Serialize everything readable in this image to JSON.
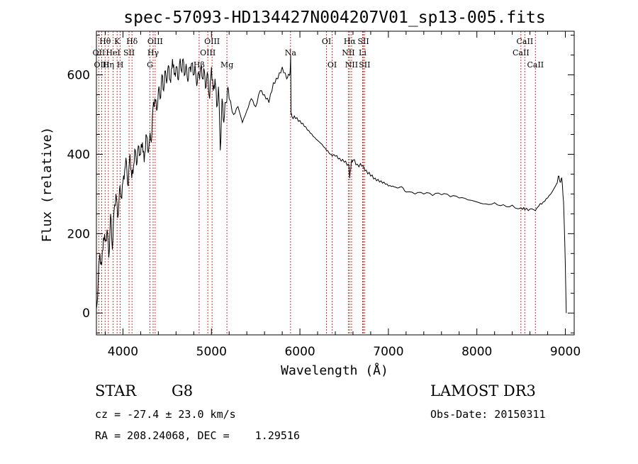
{
  "chart_data": {
    "type": "line",
    "title": "spec-57093-HD134427N004207V01_sp13-005.fits",
    "xlabel": "Wavelength (Å)",
    "ylabel": "Flux (relative)",
    "xlim": [
      3700,
      9100
    ],
    "ylim": [
      -55,
      710
    ],
    "xticks": [
      4000,
      5000,
      6000,
      7000,
      8000,
      9000
    ],
    "yticks": [
      0,
      200,
      400,
      600
    ],
    "grid": false,
    "series": [
      {
        "values_x": [
          3700,
          3720,
          3740,
          3760,
          3780,
          3800,
          3820,
          3840,
          3860,
          3880,
          3900,
          3920,
          3940,
          3960,
          3980,
          4000,
          4020,
          4040,
          4060,
          4080,
          4100,
          4120,
          4140,
          4160,
          4180,
          4200,
          4220,
          4240,
          4260,
          4280,
          4300,
          4320,
          4340,
          4360,
          4380,
          4400,
          4420,
          4440,
          4460,
          4480,
          4500,
          4520,
          4540,
          4560,
          4580,
          4600,
          4620,
          4640,
          4660,
          4680,
          4700,
          4720,
          4740,
          4760,
          4780,
          4800,
          4820,
          4840,
          4860,
          4880,
          4900,
          4920,
          4940,
          4960,
          4980,
          5000,
          5020,
          5040,
          5060,
          5080,
          5100,
          5120,
          5140,
          5160,
          5180,
          5200,
          5250,
          5300,
          5350,
          5400,
          5450,
          5500,
          5550,
          5600,
          5650,
          5700,
          5750,
          5800,
          5850,
          5880,
          5890,
          5895,
          5900,
          5910,
          5950,
          6000,
          6050,
          6100,
          6150,
          6200,
          6250,
          6300,
          6350,
          6400,
          6450,
          6500,
          6550,
          6563,
          6580,
          6600,
          6650,
          6700,
          6750,
          6800,
          6850,
          6900,
          6950,
          7000,
          7050,
          7100,
          7150,
          7200,
          7300,
          7400,
          7500,
          7600,
          7700,
          7800,
          7900,
          8000,
          8100,
          8200,
          8300,
          8400,
          8500,
          8542,
          8600,
          8662,
          8700,
          8750,
          8800,
          8850,
          8900,
          8920,
          8940,
          8960,
          8980,
          9000,
          9010
        ],
        "values_y": [
          10,
          80,
          150,
          120,
          190,
          180,
          210,
          140,
          250,
          160,
          260,
          300,
          240,
          310,
          290,
          330,
          360,
          380,
          320,
          400,
          340,
          370,
          410,
          380,
          420,
          400,
          430,
          380,
          450,
          410,
          440,
          430,
          520,
          540,
          510,
          560,
          540,
          600,
          560,
          610,
          590,
          620,
          580,
          640,
          600,
          620,
          590,
          630,
          610,
          640,
          600,
          615,
          590,
          620,
          630,
          600,
          610,
          580,
          600,
          620,
          590,
          610,
          570,
          600,
          540,
          620,
          560,
          590,
          520,
          570,
          410,
          540,
          480,
          530,
          560,
          540,
          500,
          520,
          480,
          510,
          540,
          520,
          560,
          550,
          530,
          580,
          590,
          620,
          590,
          600,
          610,
          650,
          500,
          495,
          490,
          485,
          470,
          460,
          445,
          435,
          425,
          410,
          400,
          395,
          390,
          380,
          375,
          340,
          380,
          385,
          375,
          370,
          360,
          345,
          340,
          330,
          330,
          320,
          320,
          315,
          318,
          305,
          300,
          300,
          296,
          298,
          293,
          290,
          285,
          280,
          275,
          278,
          273,
          272,
          265,
          260,
          262,
          258,
          270,
          280,
          290,
          305,
          325,
          345,
          330,
          340,
          280,
          120,
          0
        ],
        "stroke": "#000000"
      }
    ],
    "lines": [
      {
        "label": "Hθ",
        "x": 3798,
        "row": 0
      },
      {
        "label": "K",
        "x": 3934,
        "row": 0
      },
      {
        "label": "Hδ",
        "x": 4102,
        "row": 0
      },
      {
        "label": "OII",
        "x": 3727,
        "row": 1
      },
      {
        "label": "HeI",
        "x": 3889,
        "row": 1
      },
      {
        "label": "SII",
        "x": 4069,
        "row": 1
      },
      {
        "label": "OIII",
        "x": 3760,
        "row": 2
      },
      {
        "label": "Hη",
        "x": 3835,
        "row": 2
      },
      {
        "label": "H",
        "x": 3969,
        "row": 2
      },
      {
        "label": "OIII",
        "x": 4364,
        "row": 0
      },
      {
        "label": "Hγ",
        "x": 4341,
        "row": 1
      },
      {
        "label": "G",
        "x": 4305,
        "row": 2
      },
      {
        "label": "OIII",
        "x": 5007,
        "row": 0
      },
      {
        "label": "OIII",
        "x": 4959,
        "row": 1
      },
      {
        "label": "Hβ",
        "x": 4861,
        "row": 2
      },
      {
        "label": "Mg",
        "x": 5175,
        "row": 2
      },
      {
        "label": "Na",
        "x": 5894,
        "row": 1
      },
      {
        "label": "OI",
        "x": 6300,
        "row": 0
      },
      {
        "label": "OI",
        "x": 6364,
        "row": 2
      },
      {
        "label": "Hα",
        "x": 6563,
        "row": 0
      },
      {
        "label": "NII",
        "x": 6548,
        "row": 1
      },
      {
        "label": "NII",
        "x": 6584,
        "row": 2
      },
      {
        "label": "SII",
        "x": 6717,
        "row": 0
      },
      {
        "label": "Li",
        "x": 6708,
        "row": 1
      },
      {
        "label": "SII",
        "x": 6731,
        "row": 2
      },
      {
        "label": "CaII",
        "x": 8542,
        "row": 0
      },
      {
        "label": "CaII",
        "x": 8498,
        "row": 1
      },
      {
        "label": "CaII",
        "x": 8662,
        "row": 2
      }
    ],
    "line_color": "#cc3333"
  },
  "info": {
    "object_class": "STAR",
    "subclass": "G8",
    "survey": "LAMOST DR3",
    "cz": "cz = -27.4 ± 23.0 km/s",
    "obs_date": "Obs-Date: 20150311",
    "coords": "RA = 208.24068, DEC =    1.29516"
  }
}
